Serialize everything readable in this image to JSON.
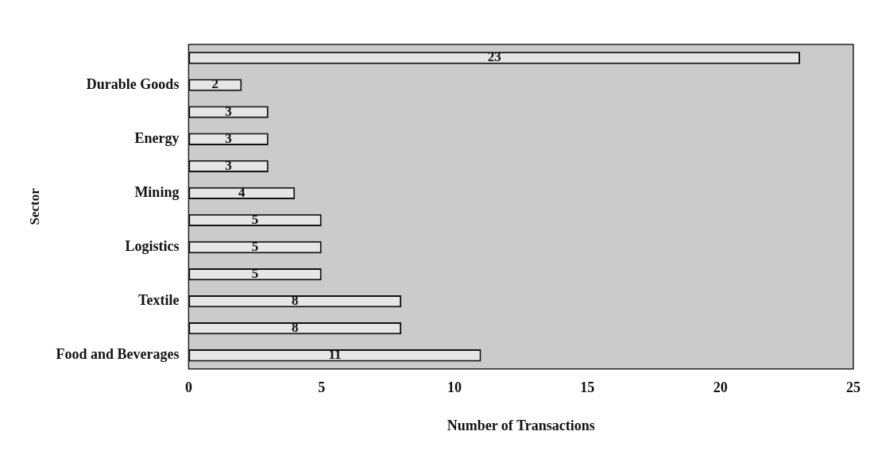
{
  "chart_data": {
    "type": "bar",
    "orientation": "horizontal",
    "xlabel": "Number of Transactions",
    "ylabel": "Sector",
    "categories": [
      null,
      "Durable Goods",
      null,
      "Energy",
      null,
      "Mining",
      null,
      "Logistics",
      null,
      "Textile",
      null,
      "Food and Beverages"
    ],
    "values": [
      23,
      2,
      3,
      3,
      3,
      4,
      5,
      5,
      5,
      8,
      8,
      11
    ],
    "color": "#e6e6e6",
    "xlim": [
      0,
      25
    ],
    "xticks": [
      0,
      5,
      10,
      15,
      20,
      25
    ],
    "grid": false,
    "legend": false,
    "data_labels": true
  }
}
